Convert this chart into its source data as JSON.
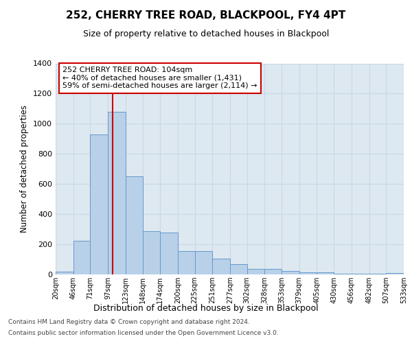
{
  "title": "252, CHERRY TREE ROAD, BLACKPOOL, FY4 4PT",
  "subtitle": "Size of property relative to detached houses in Blackpool",
  "xlabel": "Distribution of detached houses by size in Blackpool",
  "ylabel": "Number of detached properties",
  "bin_edges": [
    20,
    46,
    71,
    97,
    123,
    148,
    174,
    200,
    225,
    251,
    277,
    302,
    328,
    353,
    379,
    405,
    430,
    456,
    482,
    507,
    533
  ],
  "bar_heights": [
    20,
    225,
    930,
    1080,
    650,
    285,
    280,
    155,
    155,
    105,
    68,
    35,
    35,
    25,
    15,
    15,
    5,
    5,
    5,
    8
  ],
  "bar_color": "#b8d0e8",
  "bar_edge_color": "#6699cc",
  "grid_color": "#c8d8e8",
  "bg_color": "#dde8f0",
  "property_size": 104,
  "annotation_title": "252 CHERRY TREE ROAD: 104sqm",
  "annotation_line1": "← 40% of detached houses are smaller (1,431)",
  "annotation_line2": "59% of semi-detached houses are larger (2,114) →",
  "annotation_box_color": "#ffffff",
  "annotation_box_edge": "#cc0000",
  "vline_color": "#cc0000",
  "ylim": [
    0,
    1400
  ],
  "yticks": [
    0,
    200,
    400,
    600,
    800,
    1000,
    1200,
    1400
  ],
  "footer1": "Contains HM Land Registry data © Crown copyright and database right 2024.",
  "footer2": "Contains public sector information licensed under the Open Government Licence v3.0.",
  "tick_labels": [
    "20sqm",
    "46sqm",
    "71sqm",
    "97sqm",
    "123sqm",
    "148sqm",
    "174sqm",
    "200sqm",
    "225sqm",
    "251sqm",
    "277sqm",
    "302sqm",
    "328sqm",
    "353sqm",
    "379sqm",
    "405sqm",
    "430sqm",
    "456sqm",
    "482sqm",
    "507sqm",
    "533sqm"
  ]
}
